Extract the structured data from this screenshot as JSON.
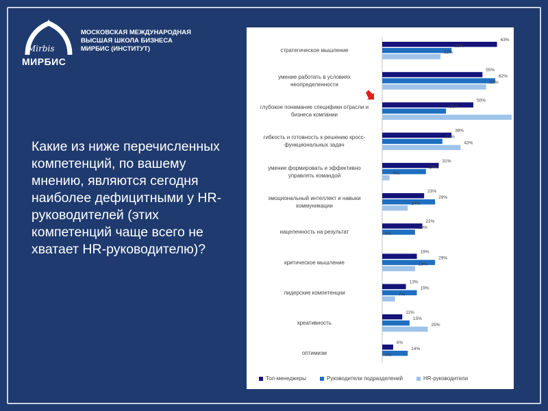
{
  "org": {
    "line1": "МОСКОВСКАЯ МЕЖДУНАРОДНАЯ",
    "line2": "ВЫСШАЯ ШКОЛА БИЗНЕСА",
    "line3": "МИРБИС (ИНСТИТУТ)",
    "logo_script": "Mirbis",
    "logo_word": "МИРБИС"
  },
  "question": "Какие из ниже перечисленных компетенций, по вашему мнению, являются сегодня наиболее дефицитными у HR-руководителей (этих компетенций чаще всего не хватает HR-руководителю)?",
  "colors": {
    "background": "#1f3a6e",
    "series1": "#14137a",
    "series2": "#1f6fc1",
    "series3": "#9fc3ea",
    "arrow": "#e02020"
  },
  "chart_data": {
    "type": "bar",
    "orientation": "horizontal",
    "categories": [
      "стратегическое мышление",
      "умение работать в условиях неопределенности",
      "глубокое понимание специфики отрасли и бизнеса компании",
      "гибкость и готовность к решению кросс-функциональных задач",
      "умение формировать и эффективно управлять командой",
      "эмоциональный интеллект и навыки коммуникации",
      "нацеленность на результат",
      "критическое мышление",
      "лидерские компетенции",
      "креативность",
      "оптимизм"
    ],
    "category_lines": [
      [
        "стратегическое мышление"
      ],
      [
        "умение работать в условиях",
        "неопределенности"
      ],
      [
        "глубокое понимание специфики отрасли и",
        "бизнеса компании"
      ],
      [
        "гибкость и готовность к решению кросс-",
        "функциональных задач"
      ],
      [
        "умение формировать и эффективно",
        "управлять командой"
      ],
      [
        "эмоциональный интеллект и навыки",
        "коммуникации"
      ],
      [
        "нацеленность на результат"
      ],
      [
        "критическое мышление"
      ],
      [
        "лидерские компетенции"
      ],
      [
        "креативность"
      ],
      [
        "оптимизм"
      ]
    ],
    "series": [
      {
        "name": "Топ-менеджеры",
        "values": [
          63,
          55,
          50,
          38,
          31,
          23,
          22,
          19,
          13,
          11,
          6
        ]
      },
      {
        "name": "Руководители подразделений",
        "values": [
          38,
          62,
          35,
          33,
          24,
          29,
          18,
          29,
          19,
          15,
          14
        ]
      },
      {
        "name": "HR-руководители",
        "values": [
          32,
          57,
          71,
          43,
          4,
          14,
          0,
          18,
          7,
          25,
          0
        ]
      }
    ],
    "value_suffix": "%",
    "xlim": [
      0,
      100
    ],
    "highlighted_category_index": 2,
    "legend_position": "bottom",
    "grid": false
  }
}
